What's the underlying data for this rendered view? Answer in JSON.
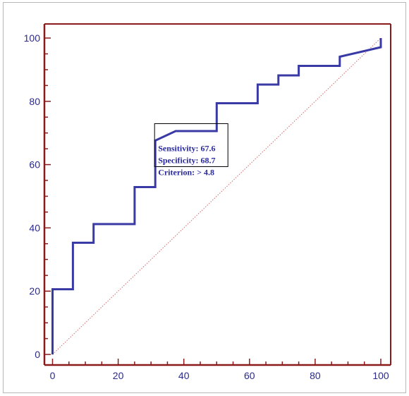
{
  "chart_data": {
    "type": "line",
    "title": "",
    "xlabel": "",
    "ylabel": "",
    "xlim": [
      0,
      100
    ],
    "ylim": [
      0,
      100
    ],
    "xticks": [
      0,
      20,
      40,
      60,
      80,
      100
    ],
    "yticks": [
      0,
      20,
      40,
      60,
      80,
      100
    ],
    "grid": false,
    "series": [
      {
        "name": "",
        "color": "#3a3aa6",
        "points": [
          [
            0,
            0
          ],
          [
            0,
            20.6
          ],
          [
            6.2,
            20.6
          ],
          [
            6.2,
            35.3
          ],
          [
            12.5,
            35.3
          ],
          [
            12.5,
            41.2
          ],
          [
            25,
            41.2
          ],
          [
            25,
            52.9
          ],
          [
            31.3,
            52.9
          ],
          [
            31.3,
            67.6
          ],
          [
            37.5,
            70.6
          ],
          [
            50,
            70.6
          ],
          [
            50,
            79.4
          ],
          [
            62.5,
            79.4
          ],
          [
            62.5,
            85.3
          ],
          [
            68.8,
            85.3
          ],
          [
            68.8,
            88.2
          ],
          [
            75,
            88.2
          ],
          [
            75,
            91.2
          ],
          [
            87.5,
            91.2
          ],
          [
            87.5,
            94.1
          ],
          [
            100,
            97.1
          ],
          [
            100,
            100
          ]
        ]
      }
    ],
    "reference_line": {
      "points": [
        [
          0,
          0
        ],
        [
          100,
          100
        ]
      ],
      "color": "#d06a6a",
      "style": "dotted"
    },
    "annotation": {
      "lines": [
        "Sensitivity: 67.6",
        "Specificity: 68.7",
        "Criterion: > 4.8"
      ],
      "anchor": [
        31.3,
        67.6
      ]
    },
    "colors": {
      "axis": "#8b1a1a",
      "line": "#3a3aa6",
      "text": "#2a2a8c"
    }
  }
}
